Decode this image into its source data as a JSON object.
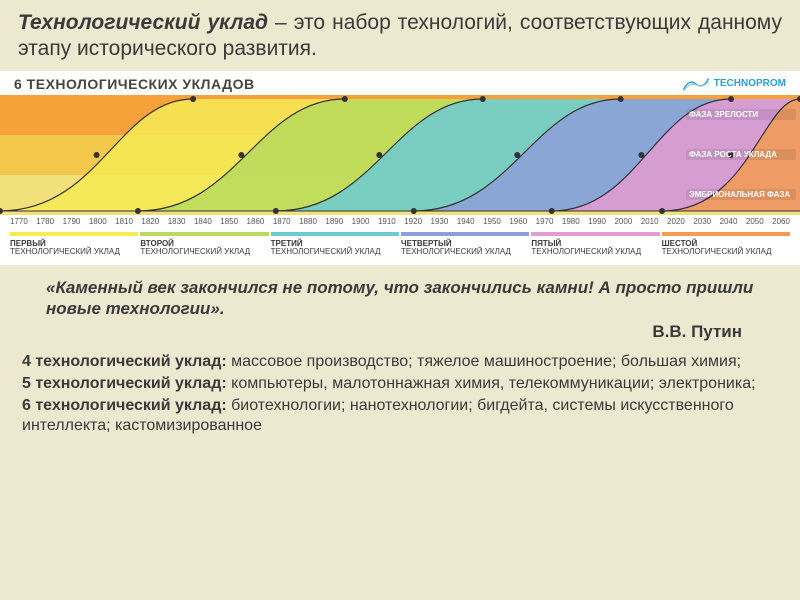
{
  "title": {
    "term": "Технологический уклад",
    "rest": " – это набор технологий, соответствующих данному этапу исторического развития."
  },
  "chart": {
    "header_title": "6 ТЕХНОЛОГИЧЕСКИХ УКЛАДОВ",
    "logo_text": "TECHNOPROM",
    "phase_labels": {
      "top": "ФАЗА ЗРЕЛОСТИ",
      "middle": "ФАЗА РОСТА УКЛАДА",
      "bottom": "ЭМБРИОНАЛЬНАЯ ФАЗА"
    },
    "band_colors": {
      "top": "#f7a13a",
      "middle": "#f4c84a",
      "bottom": "#f2e07a"
    },
    "timeline": [
      "1770",
      "1780",
      "1790",
      "1800",
      "1810",
      "1820",
      "1830",
      "1840",
      "1850",
      "1860",
      "1870",
      "1880",
      "1890",
      "1900",
      "1910",
      "1920",
      "1930",
      "1940",
      "1950",
      "1960",
      "1970",
      "1980",
      "1990",
      "2000",
      "2010",
      "2020",
      "2030",
      "2040",
      "2050",
      "2060"
    ],
    "x_domain": [
      1770,
      2060
    ],
    "waves": [
      {
        "ordinal": "ПЕРВЫЙ",
        "sub": "ТЕХНОЛОГИЧЕСКИЙ УКЛАД",
        "color": "#f6ea55",
        "fill": "#f6ea55",
        "start": 1770,
        "mid": 1810,
        "end": 1840
      },
      {
        "ordinal": "ВТОРОЙ",
        "sub": "ТЕХНОЛОГИЧЕСКИЙ УКЛАД",
        "color": "#b7db5c",
        "fill": "#b7db5c",
        "start": 1820,
        "mid": 1860,
        "end": 1895
      },
      {
        "ordinal": "ТРЕТИЙ",
        "sub": "ТЕХНОЛОГИЧЕСКИЙ УКЛАД",
        "color": "#6dcad4",
        "fill": "#6dcad4",
        "start": 1870,
        "mid": 1910,
        "end": 1945
      },
      {
        "ordinal": "ЧЕТВЕРТЫЙ",
        "sub": "ТЕХНОЛОГИЧЕСКИЙ УКЛАД",
        "color": "#8c9fd8",
        "fill": "#8c9fd8",
        "start": 1920,
        "mid": 1960,
        "end": 1995
      },
      {
        "ordinal": "ПЯТЫЙ",
        "sub": "ТЕХНОЛОГИЧЕСКИЙ УКЛАД",
        "color": "#e49bd2",
        "fill": "#e49bd2",
        "start": 1970,
        "mid": 2005,
        "end": 2035
      },
      {
        "ordinal": "ШЕСТОЙ",
        "sub": "ТЕХНОЛОГИЧЕСКИЙ УКЛАД",
        "color": "#f29b52",
        "fill": "#f29b52",
        "start": 2010,
        "mid": 2045,
        "end": 2060
      }
    ],
    "dot_color": "#333333",
    "curve_stroke": "#333333",
    "curve_stroke_width": 1.2
  },
  "quote": {
    "text": "«Каменный век закончился не потому, что закончились камни! А просто пришли новые технологии».",
    "author": "В.В. Путин"
  },
  "descriptions": [
    {
      "label": "4 технологический уклад:",
      "text": " массовое производство; тяжелое машиностроение; большая химия;"
    },
    {
      "label": "5 технологический уклад:",
      "text": " компьютеры, малотоннажная химия, телекоммуникации; электроника;"
    },
    {
      "label": "6 технологический уклад:",
      "text": " биотехнологии; нанотехнологии; бигдейта, системы искусственного интеллекта; кастомизированное"
    }
  ]
}
